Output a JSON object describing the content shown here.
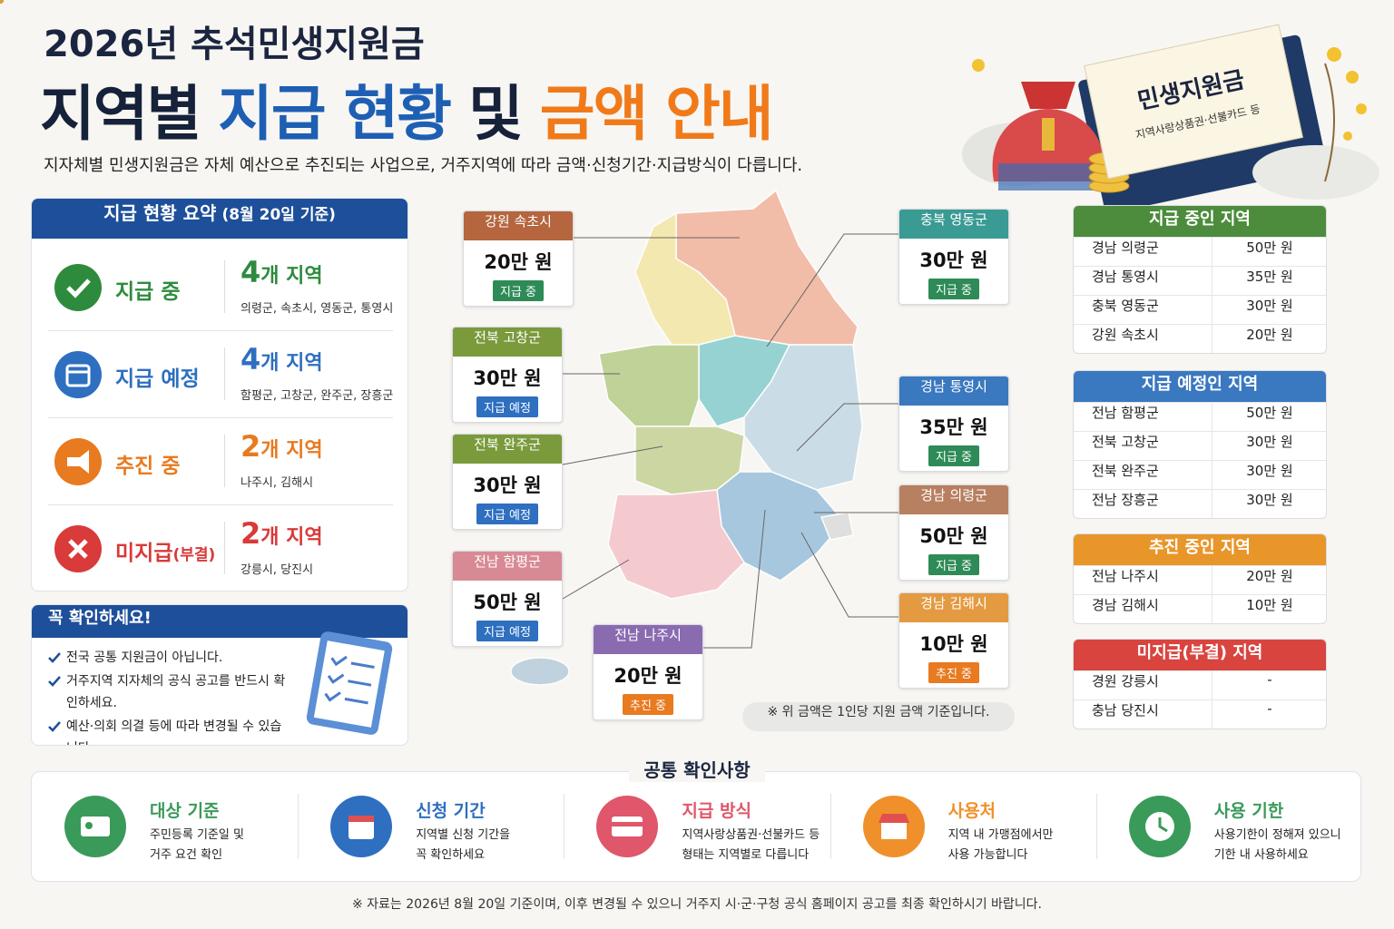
{
  "header": {
    "title": "2026년 추석민생지원금",
    "headline": [
      {
        "text": "지역별",
        "color": "#16213a"
      },
      {
        "text": "지급 현황",
        "color": "#1e5fb4"
      },
      {
        "text": "및",
        "color": "#16213a"
      },
      {
        "text": "금액 안내",
        "color": "#f07a1a"
      }
    ],
    "subtitle": "지자체별 민생지원금은 자체 예산으로 추진되는 사업으로, 거주지역에 따라 금액·신청기간·지급방식이 다릅니다."
  },
  "badge": {
    "title": "민생지원금",
    "note": "지역사랑상품권·선불카드 등"
  },
  "summary": {
    "title": "지급 현황 요약",
    "title_note": "(8월 20일 기준)",
    "rows": [
      {
        "label": "지급 중",
        "color": "#2e8b3e",
        "count": 4,
        "unit": "개 지역",
        "regions": "의령군, 속초시, 영동군, 통영시"
      },
      {
        "label": "지급 예정",
        "color": "#2e6fc0",
        "count": 4,
        "unit": "개 지역",
        "regions": "함평군, 고창군, 완주군, 장흥군"
      },
      {
        "label": "추진 중",
        "color": "#e87a20",
        "count": 2,
        "unit": "개 지역",
        "regions": "나주시, 김해시"
      },
      {
        "label": "미지급",
        "label_note": "(부결)",
        "color": "#d93a3a",
        "count": 2,
        "unit": "개 지역",
        "regions": "강릉시, 당진시"
      }
    ]
  },
  "notice": {
    "title": "꼭 확인하세요!",
    "items": [
      "전국 공통 지원금이 아닙니다.",
      "거주지역 지자체의 공식 공고를 반드시 확인하세요.",
      "예산·의회 의결 등에 따라 변경될 수 있습니다."
    ]
  },
  "callouts": [
    {
      "region": "강원 속초시",
      "amount": "20만 원",
      "status": "지급 중",
      "color": "#b5663f",
      "status_color": "#2e8b57"
    },
    {
      "region": "전북 고창군",
      "amount": "30만 원",
      "status": "지급 예정",
      "color": "#7a9a3c",
      "status_color": "#2e6fc0"
    },
    {
      "region": "전북 완주군",
      "amount": "30만 원",
      "status": "지급 예정",
      "color": "#7a9a3c",
      "status_color": "#2e6fc0"
    },
    {
      "region": "전남 함평군",
      "amount": "50만 원",
      "status": "지급 예정",
      "color": "#d88a94",
      "status_color": "#2e6fc0"
    },
    {
      "region": "전남 나주시",
      "amount": "20만 원",
      "status": "추진 중",
      "color": "#8a6bb0",
      "status_color": "#e87a20"
    },
    {
      "region": "충북 영동군",
      "amount": "30만 원",
      "status": "지급 중",
      "color": "#3a9a94",
      "status_color": "#2e8b57"
    },
    {
      "region": "경남 통영시",
      "amount": "35만 원",
      "status": "지급 중",
      "color": "#3a78c0",
      "status_color": "#2e8b57"
    },
    {
      "region": "경남 의령군",
      "amount": "50만 원",
      "status": "지급 중",
      "color": "#b78060",
      "status_color": "#2e8b57"
    },
    {
      "region": "경남 김해시",
      "amount": "10만 원",
      "status": "추진 중",
      "color": "#e49a40",
      "status_color": "#e87a20"
    }
  ],
  "map_note": "※ 위 금액은 1인당 지원 금액 기준입니다.",
  "tables": [
    {
      "title": "지급 중인 지역",
      "color": "#4c8c3c",
      "rows": [
        [
          "경남 의령군",
          "50만 원"
        ],
        [
          "경남 통영시",
          "35만 원"
        ],
        [
          "충북 영동군",
          "30만 원"
        ],
        [
          "강원 속초시",
          "20만 원"
        ]
      ]
    },
    {
      "title": "지급 예정인 지역",
      "color": "#3a78c0",
      "rows": [
        [
          "전남 함평군",
          "50만 원"
        ],
        [
          "전북 고창군",
          "30만 원"
        ],
        [
          "전북 완주군",
          "30만 원"
        ],
        [
          "전남 장흥군",
          "30만 원"
        ]
      ]
    },
    {
      "title": "추진 중인 지역",
      "color": "#e8962a",
      "rows": [
        [
          "전남 나주시",
          "20만 원"
        ],
        [
          "경남 김해시",
          "10만 원"
        ]
      ]
    },
    {
      "title": "미지급(부결) 지역",
      "color": "#d9443f",
      "rows": [
        [
          "경원 강릉시",
          "-"
        ],
        [
          "충남 당진시",
          "-"
        ]
      ]
    }
  ],
  "common": {
    "title": "공통 확인사항",
    "items": [
      {
        "title": "대상 기준",
        "color": "#3a9a5a",
        "lines": [
          "주민등록 기준일 및",
          "거주 요건 확인"
        ]
      },
      {
        "title": "신청 기간",
        "color": "#2e6fc0",
        "lines": [
          "지역별 신청 기간을",
          "꼭 확인하세요"
        ]
      },
      {
        "title": "지급 방식",
        "color": "#e0566a",
        "lines": [
          "지역사랑상품권·선불카드 등",
          "형태는 지역별로 다릅니다"
        ]
      },
      {
        "title": "사용처",
        "color": "#f0902a",
        "lines": [
          "지역 내 가맹점에서만",
          "사용 가능합니다"
        ]
      },
      {
        "title": "사용 기한",
        "color": "#3a9a5a",
        "lines": [
          "사용기한이 정해져 있으니",
          "기한 내 사용하세요"
        ]
      }
    ]
  },
  "footer": "※ 자료는 2026년 8월 20일 기준이며, 이후 변경될 수 있으니 거주지 시·군·구청 공식 홈페이지 공고를 최종 확인하시기 바랍니다."
}
